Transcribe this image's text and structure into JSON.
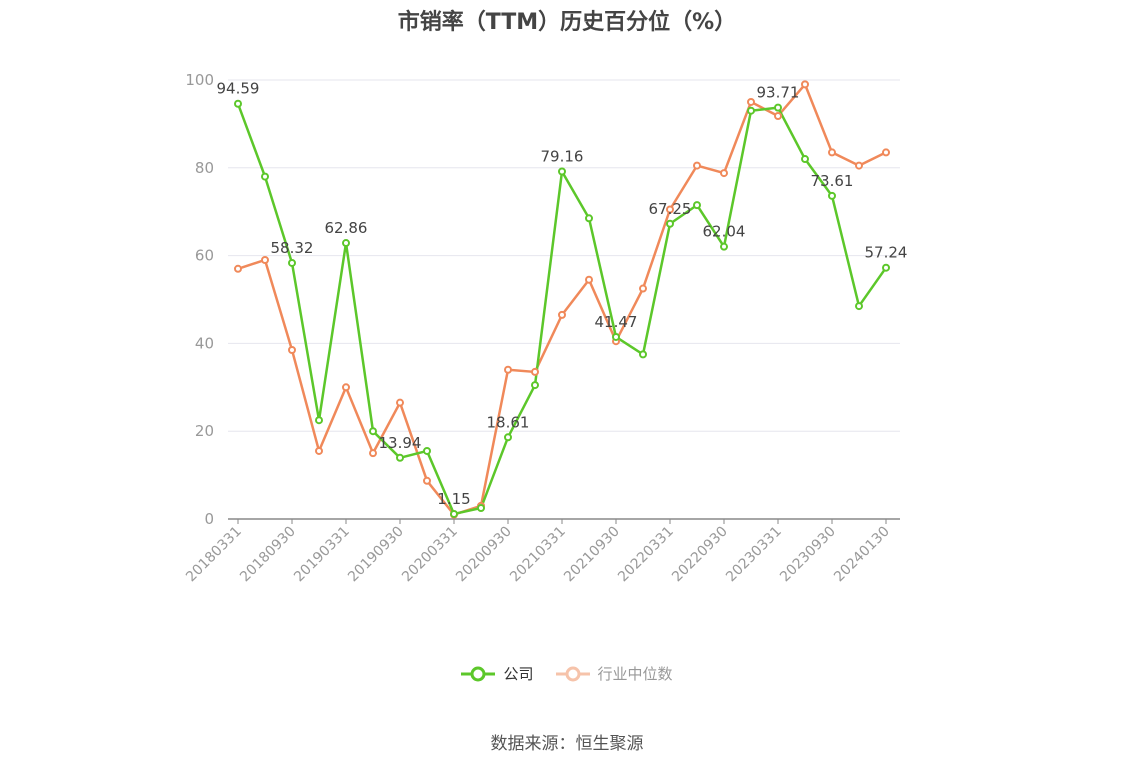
{
  "title": "市销率（TTM）历史百分位（%）",
  "source": "数据来源：恒生聚源",
  "colors": {
    "company": "#5cc72a",
    "industry": "#f0895a",
    "axis": "#999999",
    "grid": "#e6e6ee",
    "text": "#444444"
  },
  "chart_data": {
    "type": "line",
    "title": "市销率（TTM）历史百分位（%）",
    "xlabel": "",
    "ylabel": "",
    "ylim": [
      0,
      100
    ],
    "yticks": [
      0,
      20,
      40,
      60,
      80,
      100
    ],
    "grid": true,
    "legend_position": "bottom",
    "x": [
      "20180331",
      "20180630",
      "20180930",
      "20181231",
      "20190331",
      "20190630",
      "20190930",
      "20191231",
      "20200331",
      "20200630",
      "20200930",
      "20201231",
      "20210331",
      "20210630",
      "20210930",
      "20211231",
      "20220331",
      "20220630",
      "20220930",
      "20221231",
      "20230331",
      "20230630",
      "20230930",
      "20231231",
      "20240130"
    ],
    "x_tick_labels": [
      "20180331",
      "20180930",
      "20190331",
      "20190930",
      "20200331",
      "20200930",
      "20210331",
      "20210930",
      "20220331",
      "20220930",
      "20230331",
      "20230930",
      "20240130"
    ],
    "series": [
      {
        "name": "公司",
        "values": [
          94.59,
          78.0,
          58.32,
          22.5,
          62.86,
          20.0,
          13.94,
          15.5,
          1.15,
          2.5,
          18.61,
          30.5,
          79.16,
          68.5,
          41.47,
          37.5,
          67.25,
          71.5,
          62.04,
          93.0,
          93.71,
          82.0,
          73.61,
          48.5,
          57.24
        ],
        "labels": {
          "0": "94.59",
          "2": "58.32",
          "4": "62.86",
          "6": "13.94",
          "8": "1.15",
          "10": "18.61",
          "12": "79.16",
          "14": "41.47",
          "16": "67.25",
          "18": "62.04",
          "20": "93.71",
          "22": "73.61",
          "24": "57.24"
        }
      },
      {
        "name": "行业中位数",
        "values": [
          57.0,
          59.0,
          38.5,
          15.5,
          30.0,
          15.0,
          26.5,
          8.7,
          1.0,
          3.0,
          34.0,
          33.5,
          46.5,
          54.5,
          40.5,
          52.5,
          70.5,
          80.5,
          78.8,
          95.0,
          91.8,
          99.0,
          83.5,
          80.5,
          83.5
        ]
      }
    ]
  }
}
